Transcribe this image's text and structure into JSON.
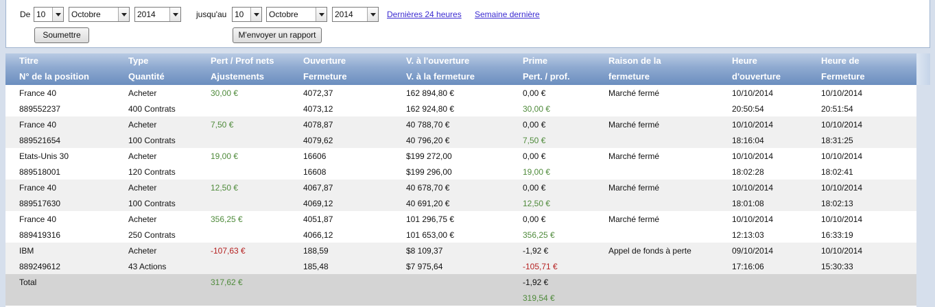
{
  "filters": {
    "from_label": "De",
    "from_day": "10",
    "from_month": "Octobre",
    "from_year": "2014",
    "to_label": "jusqu'au",
    "to_day": "10",
    "to_month": "Octobre",
    "to_year": "2014",
    "link_last24": "Dernières 24 heures",
    "link_lastweek": "Semaine dernière",
    "submit_label": "Soumettre",
    "report_label": "M'envoyer un rapport"
  },
  "columns": [
    {
      "line1": "Titre",
      "line2": "N° de la position"
    },
    {
      "line1": "Type",
      "line2": "Quantité"
    },
    {
      "line1": "Pert / Prof nets",
      "line2": "Ajustements"
    },
    {
      "line1": "Ouverture",
      "line2": "Fermeture"
    },
    {
      "line1": "V. à l'ouverture",
      "line2": "V. à la fermeture"
    },
    {
      "line1": "Prime",
      "line2": "Pert. / prof."
    },
    {
      "line1": "Raison de la",
      "line2": "fermeture"
    },
    {
      "line1": "Heure",
      "line2": "d'ouverture"
    },
    {
      "line1": "Heure de",
      "line2": "Fermeture"
    }
  ],
  "rows": [
    {
      "title": "France 40",
      "position": "889552237",
      "type": "Acheter",
      "quantity": "400 Contrats",
      "net": "30,00 €",
      "open": "4072,37",
      "close": "4073,12",
      "open_value": "162 894,80 €",
      "close_value": "162 924,80 €",
      "premium": "0,00 €",
      "pl": "30,00 €",
      "reason": "Marché fermé",
      "open_date": "10/10/2014",
      "open_time": "20:50:54",
      "close_date": "10/10/2014",
      "close_time": "20:51:54"
    },
    {
      "title": "France 40",
      "position": "889521654",
      "type": "Acheter",
      "quantity": "100 Contrats",
      "net": "7,50 €",
      "open": "4078,87",
      "close": "4079,62",
      "open_value": "40 788,70 €",
      "close_value": "40 796,20 €",
      "premium": "0,00 €",
      "pl": "7,50 €",
      "reason": "Marché fermé",
      "open_date": "10/10/2014",
      "open_time": "18:16:04",
      "close_date": "10/10/2014",
      "close_time": "18:31:25"
    },
    {
      "title": "Etats-Unis 30",
      "position": "889518001",
      "type": "Acheter",
      "quantity": "120 Contrats",
      "net": "19,00 €",
      "open": "16606",
      "close": "16608",
      "open_value": "$199 272,00",
      "close_value": "$199 296,00",
      "premium": "0,00 €",
      "pl": "19,00 €",
      "reason": "Marché fermé",
      "open_date": "10/10/2014",
      "open_time": "18:02:28",
      "close_date": "10/10/2014",
      "close_time": "18:02:41"
    },
    {
      "title": "France 40",
      "position": "889517630",
      "type": "Acheter",
      "quantity": "100 Contrats",
      "net": "12,50 €",
      "open": "4067,87",
      "close": "4069,12",
      "open_value": "40 678,70 €",
      "close_value": "40 691,20 €",
      "premium": "0,00 €",
      "pl": "12,50 €",
      "reason": "Marché fermé",
      "open_date": "10/10/2014",
      "open_time": "18:01:08",
      "close_date": "10/10/2014",
      "close_time": "18:02:13"
    },
    {
      "title": "France 40",
      "position": "889419316",
      "type": "Acheter",
      "quantity": "250 Contrats",
      "net": "356,25 €",
      "open": "4051,87",
      "close": "4066,12",
      "open_value": "101 296,75 €",
      "close_value": "101 653,00 €",
      "premium": "0,00 €",
      "pl": "356,25 €",
      "reason": "Marché fermé",
      "open_date": "10/10/2014",
      "open_time": "12:13:03",
      "close_date": "10/10/2014",
      "close_time": "16:33:19"
    },
    {
      "title": "IBM",
      "position": "889249612",
      "type": "Acheter",
      "quantity": "43 Actions",
      "net": "-107,63 €",
      "open": "188,59",
      "close": "185,48",
      "open_value": "$8 109,37",
      "close_value": "$7 975,64",
      "premium": "-1,92 €",
      "pl": "-105,71 €",
      "reason": "Appel de fonds à perte",
      "open_date": "09/10/2014",
      "open_time": "17:16:06",
      "close_date": "10/10/2014",
      "close_time": "15:30:33"
    }
  ],
  "total": {
    "label": "Total",
    "net": "317,62 €",
    "premium": "-1,92 €",
    "pl": "319,54 €"
  }
}
